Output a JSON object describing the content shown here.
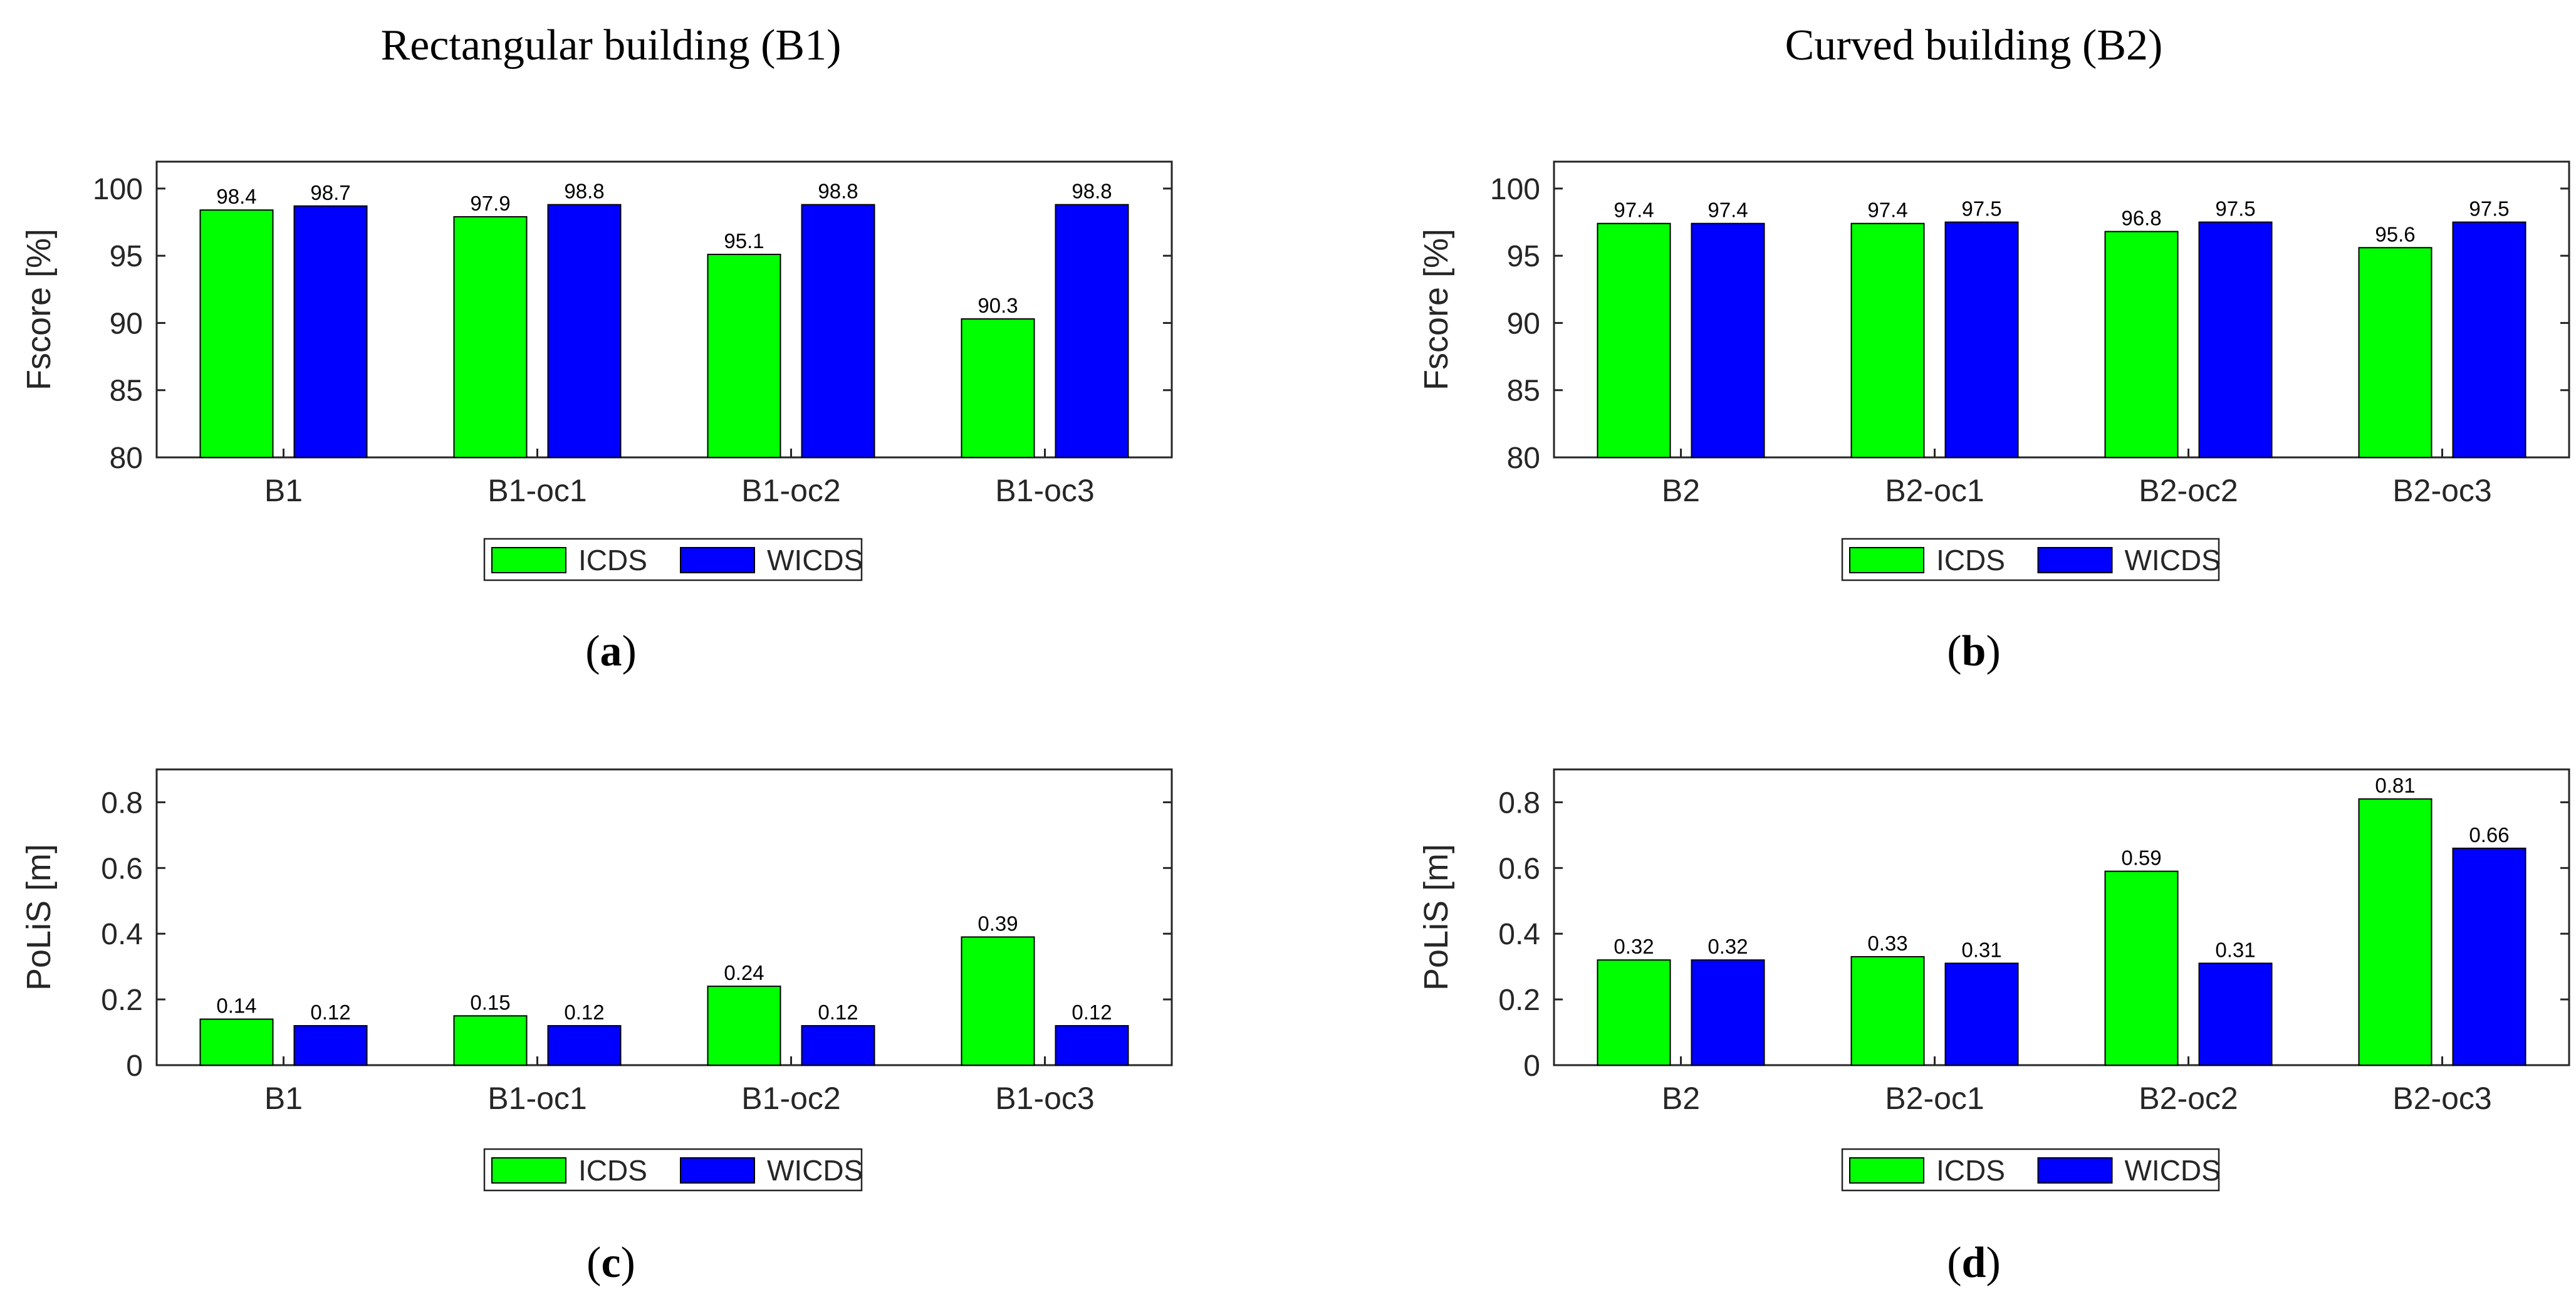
{
  "figure": {
    "headings": {
      "left": "Rectangular building (B1)",
      "right": "Curved building (B2)"
    },
    "colors": {
      "icds": "#00ff00",
      "wicds": "#0000ff",
      "axis": "#262626",
      "grid": "#e0e0e0"
    }
  },
  "chart_data": [
    {
      "id": "a",
      "type": "bar",
      "caption_letter": "a",
      "categories": [
        "B1",
        "B1-oc1",
        "B1-oc2",
        "B1-oc3"
      ],
      "series": [
        {
          "name": "ICDS",
          "values": [
            98.4,
            97.9,
            95.1,
            90.3
          ],
          "labels": [
            "98.4",
            "97.9",
            "95.1",
            "90.3"
          ]
        },
        {
          "name": "WICDS",
          "values": [
            98.7,
            98.8,
            98.8,
            98.8
          ],
          "labels": [
            "98.7",
            "98.8",
            "98.8",
            "98.8"
          ]
        }
      ],
      "ylabel": "Fscore [%]",
      "ylim": [
        80,
        102
      ],
      "yticks": [
        80,
        85,
        90,
        95,
        100
      ],
      "ytick_labels": [
        "80",
        "85",
        "90",
        "95",
        "100"
      ],
      "legend": [
        "ICDS",
        "WICDS"
      ],
      "legend_position": "bottom-center"
    },
    {
      "id": "b",
      "type": "bar",
      "caption_letter": "b",
      "categories": [
        "B2",
        "B2-oc1",
        "B2-oc2",
        "B2-oc3"
      ],
      "series": [
        {
          "name": "ICDS",
          "values": [
            97.4,
            97.4,
            96.8,
            95.6
          ],
          "labels": [
            "97.4",
            "97.4",
            "96.8",
            "95.6"
          ]
        },
        {
          "name": "WICDS",
          "values": [
            97.4,
            97.5,
            97.5,
            97.5
          ],
          "labels": [
            "97.4",
            "97.5",
            "97.5",
            "97.5"
          ]
        }
      ],
      "ylabel": "Fscore [%]",
      "ylim": [
        80,
        102
      ],
      "yticks": [
        80,
        85,
        90,
        95,
        100
      ],
      "ytick_labels": [
        "80",
        "85",
        "90",
        "95",
        "100"
      ],
      "legend": [
        "ICDS",
        "WICDS"
      ],
      "legend_position": "bottom-center"
    },
    {
      "id": "c",
      "type": "bar",
      "caption_letter": "c",
      "categories": [
        "B1",
        "B1-oc1",
        "B1-oc2",
        "B1-oc3"
      ],
      "series": [
        {
          "name": "ICDS",
          "values": [
            0.14,
            0.15,
            0.24,
            0.39
          ],
          "labels": [
            "0.14",
            "0.15",
            "0.24",
            "0.39"
          ]
        },
        {
          "name": "WICDS",
          "values": [
            0.12,
            0.12,
            0.12,
            0.12
          ],
          "labels": [
            "0.12",
            "0.12",
            "0.12",
            "0.12"
          ]
        }
      ],
      "ylabel": "PoLiS [m]",
      "ylim": [
        0,
        0.9
      ],
      "yticks": [
        0,
        0.2,
        0.4,
        0.6,
        0.8
      ],
      "ytick_labels": [
        "0",
        "0.2",
        "0.4",
        "0.6",
        "0.8"
      ],
      "legend": [
        "ICDS",
        "WICDS"
      ],
      "legend_position": "bottom-center"
    },
    {
      "id": "d",
      "type": "bar",
      "caption_letter": "d",
      "categories": [
        "B2",
        "B2-oc1",
        "B2-oc2",
        "B2-oc3"
      ],
      "series": [
        {
          "name": "ICDS",
          "values": [
            0.32,
            0.33,
            0.59,
            0.81
          ],
          "labels": [
            "0.32",
            "0.33",
            "0.59",
            "0.81"
          ]
        },
        {
          "name": "WICDS",
          "values": [
            0.32,
            0.31,
            0.31,
            0.66
          ],
          "labels": [
            "0.32",
            "0.31",
            "0.31",
            "0.66"
          ]
        }
      ],
      "ylabel": "PoLiS [m]",
      "ylim": [
        0,
        0.9
      ],
      "yticks": [
        0,
        0.2,
        0.4,
        0.6,
        0.8
      ],
      "ytick_labels": [
        "0",
        "0.2",
        "0.4",
        "0.6",
        "0.8"
      ],
      "legend": [
        "ICDS",
        "WICDS"
      ],
      "legend_position": "bottom-center"
    }
  ]
}
